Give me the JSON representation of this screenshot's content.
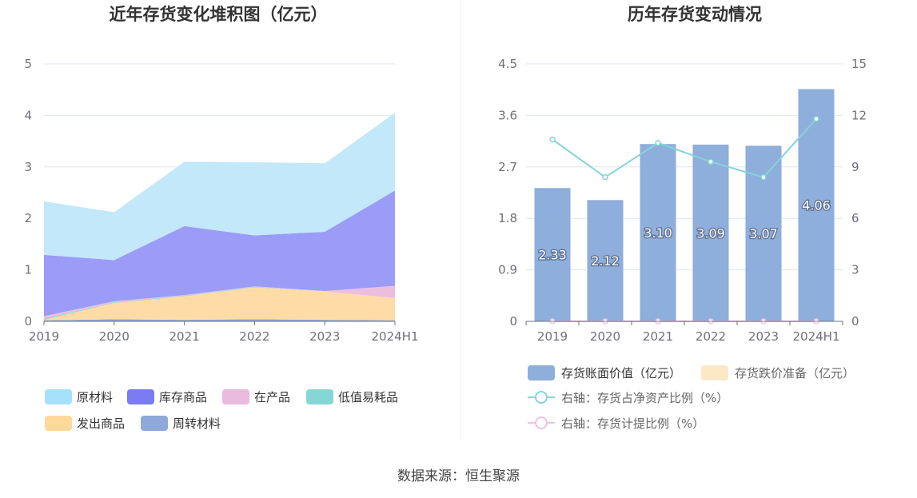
{
  "source_label": "数据来源：恒生聚源",
  "chart_data": [
    {
      "type": "area",
      "stacked": true,
      "title": "近年存货变化堆积图（亿元）",
      "categories": [
        "2019",
        "2020",
        "2021",
        "2022",
        "2023",
        "2024H1"
      ],
      "ylim": [
        0,
        5
      ],
      "yticks": [
        0,
        1,
        2,
        3,
        4,
        5
      ],
      "grid": true,
      "legend_position": "bottom",
      "series": [
        {
          "name": "周转材料",
          "color": "#8fa8da",
          "values": [
            0.02,
            0.04,
            0.03,
            0.04,
            0.03,
            0.02
          ]
        },
        {
          "name": "发出商品",
          "color": "#ffdca6",
          "values": [
            0.01,
            0.32,
            0.46,
            0.62,
            0.55,
            0.43
          ]
        },
        {
          "name": "低值易耗品",
          "color": "#86d6d6",
          "values": [
            0.02,
            0.01,
            0.01,
            0.01,
            0.0,
            0.0
          ]
        },
        {
          "name": "在产品",
          "color": "#ecbede",
          "values": [
            0.05,
            0.02,
            0.01,
            0.01,
            0.01,
            0.24
          ]
        },
        {
          "name": "库存商品",
          "color": "#9b9cf7",
          "values": [
            1.19,
            0.8,
            1.34,
            0.99,
            1.15,
            1.85
          ]
        },
        {
          "name": "原材料",
          "color": "#c2e8fa",
          "values": [
            1.04,
            0.93,
            1.25,
            1.42,
            1.33,
            1.51
          ]
        }
      ],
      "legend": [
        {
          "name": "原材料",
          "color": "#a6e1fb"
        },
        {
          "name": "库存商品",
          "color": "#7b7bf2"
        },
        {
          "name": "在产品",
          "color": "#ebbadf"
        },
        {
          "name": "低值易耗品",
          "color": "#86d6d6"
        },
        {
          "name": "发出商品",
          "color": "#ffd99b"
        },
        {
          "name": "周转材料",
          "color": "#8fa8da"
        }
      ]
    },
    {
      "type": "bar",
      "title": "历年存货变动情况",
      "categories": [
        "2019",
        "2020",
        "2021",
        "2022",
        "2023",
        "2024H1"
      ],
      "ylim": [
        0,
        4.5
      ],
      "yticks": [
        "0",
        "0.9",
        "1.8",
        "2.7",
        "3.6",
        "4.5"
      ],
      "y2lim": [
        0,
        15
      ],
      "y2ticks": [
        "0",
        "3",
        "6",
        "9",
        "12",
        "15"
      ],
      "grid": true,
      "legend_position": "bottom",
      "series": [
        {
          "name": "存货账面价值（亿元）",
          "type": "bar",
          "axis": "left",
          "color": "#8eaedb",
          "values": [
            2.33,
            2.12,
            3.1,
            3.09,
            3.07,
            4.06
          ],
          "labels": [
            "2.33",
            "2.12",
            "3.10",
            "3.09",
            "3.07",
            "4.06"
          ]
        },
        {
          "name": "存货跌价准备（亿元）",
          "type": "bar",
          "axis": "left",
          "color": "#fde8c6",
          "values": [
            0,
            0,
            0,
            0,
            0,
            0
          ]
        },
        {
          "name": "右轴：存货占净资产比例（%）",
          "type": "line",
          "axis": "right",
          "color": "#86d4d8",
          "values": [
            10.6,
            8.4,
            10.4,
            9.3,
            8.4,
            11.8
          ]
        },
        {
          "name": "右轴：存货计提比例（%）",
          "type": "line",
          "axis": "right",
          "color": "#efc4e2",
          "values": [
            0,
            0,
            0,
            0,
            0,
            0
          ]
        }
      ]
    }
  ]
}
